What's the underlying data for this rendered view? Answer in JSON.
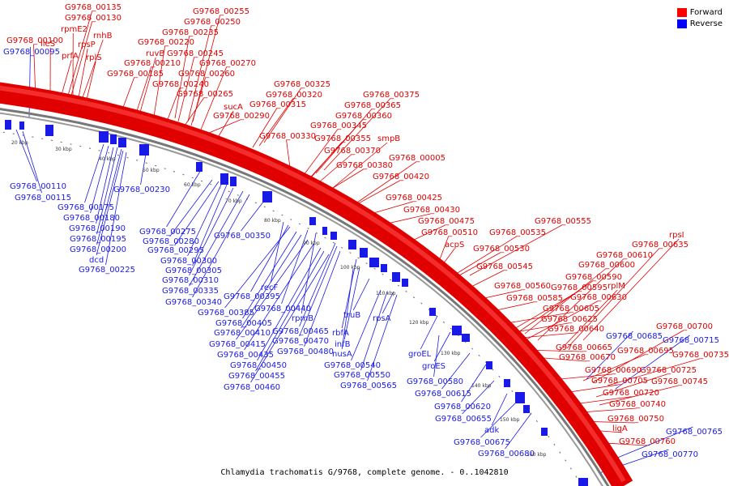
{
  "legend": {
    "forward_label": "Forward",
    "reverse_label": "Reverse",
    "forward_color": "#ff0000",
    "reverse_color": "#0000ff"
  },
  "caption": "Chlamydia trachomatis G/9768, complete genome. - 0..1042810",
  "scale_ticks": [
    "20 kbp",
    "30 kbp",
    "40 kbp",
    "50 kbp",
    "60 kbp",
    "70 kbp",
    "80 kbp",
    "90 kbp",
    "100 kbp",
    "110 kbp",
    "120 kbp",
    "130 kbp",
    "140 kbp",
    "150 kbp",
    "160 kbp"
  ],
  "forward_labels": [
    "G9768_00135",
    "G9768_00130",
    "rpmE2",
    "rnhB",
    "G9768_00100",
    "ileS",
    "prfA",
    "rpsP",
    "rplS",
    "G9768_00255",
    "G9768_00250",
    "G9768_00235",
    "G9768_00220",
    "ruvB",
    "G9768_00245",
    "G9768_00210",
    "G9768_00270",
    "G9768_00185",
    "G9768_00260",
    "G9768_00240",
    "G9768_00265",
    "sucA",
    "G9768_00290",
    "G9768_00325",
    "G9768_00320",
    "G9768_00315",
    "G9768_00375",
    "G9768_00365",
    "G9768_00360",
    "G9768_00345",
    "G9768_00330",
    "G9768_00355",
    "smpB",
    "G9768_00370",
    "G9768_00005",
    "G9768_00380",
    "G9768_00420",
    "G9768_00425",
    "G9768_00430",
    "G9768_00475",
    "G9768_00555",
    "G9768_00510",
    "G9768_00535",
    "acpS",
    "G9768_00530",
    "rpsI",
    "G9768_00635",
    "G9768_00610",
    "G9768_00600",
    "G9768_00545",
    "G9768_00590",
    "G9768_00560",
    "G9768_00595",
    "rplM",
    "G9768_00585",
    "G9768_00630",
    "G9768_00605",
    "G9768_00625",
    "G9768_00640",
    "G9768_00700",
    "G9768_00665",
    "G9768_00695",
    "G9768_00735",
    "G9768_00670",
    "G9768_00690",
    "G9768_00725",
    "G9768_00705",
    "G9768_00745",
    "G9768_00720",
    "G9768_00740",
    "G9768_00750",
    "ligA",
    "G9768_00760"
  ],
  "reverse_labels": [
    "G9768_00095",
    "G9768_00110",
    "G9768_00115",
    "G9768_00230",
    "G9768_00175",
    "G9768_00180",
    "G9768_00190",
    "G9768_00195",
    "G9768_00200",
    "dcd",
    "G9768_00225",
    "G9768_00275",
    "G9768_00280",
    "G9768_00295",
    "G9768_00350",
    "G9768_00300",
    "G9768_00305",
    "G9768_00310",
    "recF",
    "G9768_00335",
    "G9768_00395",
    "G9768_00340",
    "G9768_00440",
    "G9768_00385",
    "rpmB",
    "G9768_00405",
    "G9768_00410",
    "G9768_00465",
    "truB",
    "rpsA",
    "G9768_00470",
    "rbfA",
    "G9768_00415",
    "G9768_00435",
    "G9768_00480",
    "infB",
    "nusA",
    "G9768_00450",
    "G9768_00540",
    "groEL",
    "G9768_00455",
    "G9768_00550",
    "G9768_00460",
    "G9768_00565",
    "groES",
    "G9768_00580",
    "G9768_00615",
    "G9768_00620",
    "G9768_00655",
    "adk",
    "G9768_00675",
    "G9768_00680",
    "G9768_00685",
    "G9768_00715",
    "G9768_00765",
    "G9768_00770"
  ]
}
